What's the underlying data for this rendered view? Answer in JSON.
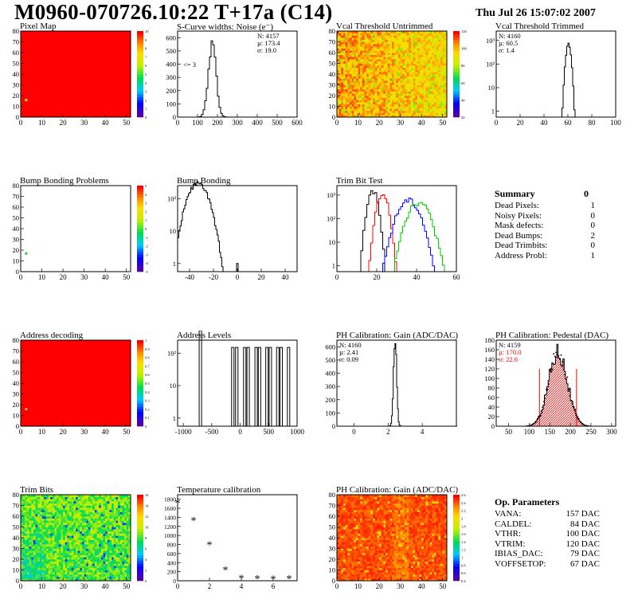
{
  "header": {
    "title": "M0960-070726.10:22 T+17a (C14)",
    "date": "Thu Jul 26 15:07:02 2007"
  },
  "chart_data": [
    {
      "id": "pixel_map",
      "type": "heatmap",
      "title": "Pixel Map",
      "xlim": [
        0,
        52
      ],
      "ylim": [
        0,
        80
      ],
      "xticks": [
        "0",
        "10",
        "20",
        "30",
        "40",
        "50"
      ],
      "yticks": [
        "0",
        "10",
        "20",
        "30",
        "40",
        "50",
        "60",
        "70",
        "80"
      ],
      "palette_ticks": [
        "0",
        "1",
        "2",
        "3",
        "4",
        "5",
        "6",
        "7",
        "8",
        "9",
        "10"
      ],
      "fill": "#ff0000",
      "special_pixels": [
        {
          "x": 2,
          "y": 16,
          "color": "#c8f000"
        }
      ]
    },
    {
      "id": "scurve",
      "type": "histogram",
      "title": "S-Curve widths: Noise (e⁻)",
      "xlim": [
        0,
        600
      ],
      "ylim": [
        0,
        650
      ],
      "xticks": [
        "0",
        "100",
        "200",
        "300",
        "400",
        "500",
        "600"
      ],
      "yticks": [
        "0",
        "100",
        "200",
        "300",
        "400",
        "500",
        "600"
      ],
      "stats": [
        "N: 4157",
        "µ: 173.4",
        "σ: 19.0"
      ],
      "note": "<= 3",
      "mean": 173.4,
      "sigma": 19.0,
      "peak": 600,
      "bin": 8
    },
    {
      "id": "vcal_untrimmed",
      "type": "heatmap",
      "title": "Vcal Threshold Untrimmed",
      "xlim": [
        0,
        52
      ],
      "ylim": [
        0,
        80
      ],
      "xticks": [
        "0",
        "10",
        "20",
        "30",
        "40",
        "50"
      ],
      "yticks": [
        "0",
        "10",
        "20",
        "30",
        "40",
        "50",
        "60",
        "70",
        "80"
      ],
      "palette_ticks": [
        "20",
        "40",
        "60",
        "80",
        "100",
        "120"
      ],
      "pattern": "noisy_orange"
    },
    {
      "id": "vcal_trimmed",
      "type": "histogram",
      "log_y": true,
      "title": "Vcal Threshold Trimmed",
      "xlim": [
        0,
        100
      ],
      "xticks": [
        "0",
        "20",
        "40",
        "60",
        "80",
        "100"
      ],
      "yticks": [
        "1",
        "10",
        "10²",
        "10³"
      ],
      "stats": [
        "N: 4160",
        "µ: 60.5",
        "σ:  1.4"
      ],
      "mean": 60.5,
      "sigma": 1.4,
      "peak": 700,
      "bin": 1
    },
    {
      "id": "bump_map",
      "type": "heatmap",
      "title": "Bump Bonding Problems",
      "xlim": [
        0,
        52
      ],
      "ylim": [
        0,
        80
      ],
      "xticks": [
        "0",
        "10",
        "20",
        "30",
        "40",
        "50"
      ],
      "yticks": [
        "0",
        "10",
        "20",
        "30",
        "40",
        "50",
        "60",
        "70",
        "80"
      ],
      "palette_ticks": [
        "-5",
        "-4",
        "-3",
        "-2",
        "-1",
        "0",
        "1",
        "2",
        "3",
        "4",
        "5"
      ],
      "fill": "#ffffff",
      "special_pixels": [
        {
          "x": 2,
          "y": 17,
          "color": "#33cc33"
        }
      ]
    },
    {
      "id": "bump_bonding",
      "type": "histogram",
      "log_y": true,
      "title": "Bump Bonding",
      "xlim": [
        -50,
        50
      ],
      "xticks": [
        "-40",
        "-20",
        "0",
        "20",
        "40"
      ],
      "yticks": [
        "1",
        "10",
        "10²"
      ],
      "mean": -33,
      "sigma": 6,
      "peak": 300,
      "bin": 1
    },
    {
      "id": "trim_bit_test",
      "type": "histogram",
      "log_y": true,
      "title": "Trim Bit Test",
      "xlim": [
        0,
        60
      ],
      "xticks": [
        "0",
        "20",
        "40",
        "60"
      ],
      "yticks": [
        "1",
        "10",
        "10²",
        "10³"
      ],
      "series": [
        {
          "color": "#000000",
          "mean": 18,
          "sigma": 1.6,
          "peak": 1600
        },
        {
          "color": "#ff0000",
          "mean": 23,
          "sigma": 1.8,
          "peak": 1000
        },
        {
          "color": "#0000ff",
          "mean": 36,
          "sigma": 3.5,
          "peak": 600
        },
        {
          "color": "#00cc00",
          "mean": 41,
          "sigma": 3.5,
          "peak": 500
        }
      ]
    },
    {
      "id": "address_decoding",
      "type": "heatmap",
      "title": "Address decoding",
      "xlim": [
        0,
        52
      ],
      "ylim": [
        0,
        80
      ],
      "xticks": [
        "0",
        "10",
        "20",
        "30",
        "40",
        "50"
      ],
      "yticks": [
        "0",
        "10",
        "20",
        "30",
        "40",
        "50",
        "60",
        "70",
        "80"
      ],
      "palette_ticks": [
        "0",
        "0.1",
        "0.2",
        "0.3",
        "0.4",
        "0.5",
        "0.6",
        "0.7",
        "0.8",
        "0.9",
        "1"
      ],
      "fill": "#ff0000",
      "special_pixels": [
        {
          "x": 2,
          "y": 16,
          "color": "#ffaa88"
        }
      ]
    },
    {
      "id": "address_levels",
      "type": "histogram",
      "log_y": true,
      "title": "Address Levels",
      "xlim": [
        -1100,
        1000
      ],
      "xticks": [
        "-1000",
        "-500",
        "0",
        "500",
        "1000"
      ],
      "yticks": [
        "1",
        "10",
        "10²"
      ],
      "peaks": [
        {
          "x": -700,
          "h": 500
        },
        {
          "x": -130,
          "h": 150
        },
        {
          "x": -60,
          "h": 150
        },
        {
          "x": 80,
          "h": 150
        },
        {
          "x": 140,
          "h": 150
        },
        {
          "x": 280,
          "h": 150
        },
        {
          "x": 340,
          "h": 150
        },
        {
          "x": 470,
          "h": 150
        },
        {
          "x": 530,
          "h": 150
        },
        {
          "x": 660,
          "h": 150
        },
        {
          "x": 720,
          "h": 150
        },
        {
          "x": 850,
          "h": 150
        }
      ]
    },
    {
      "id": "ph_gain",
      "type": "histogram",
      "title": "PH Calibration: Gain (ADC/DAC)",
      "xlim": [
        -1,
        6
      ],
      "ylim": [
        0,
        650
      ],
      "xticks": [
        "0",
        "2",
        "4"
      ],
      "yticks": [
        "0",
        "100",
        "200",
        "300",
        "400",
        "500",
        "600"
      ],
      "stats": [
        "N: 4160",
        "µ: 2.41",
        "σ: 0.09"
      ],
      "mean": 2.41,
      "sigma": 0.09,
      "peak": 620,
      "bin": 0.05
    },
    {
      "id": "ph_pedestal",
      "type": "histogram",
      "title": "PH Calibration: Pedestal (DAC)",
      "xlim": [
        20,
        310
      ],
      "ylim": [
        0,
        180
      ],
      "xticks": [
        "50",
        "100",
        "150",
        "200",
        "250",
        "300"
      ],
      "yticks": [
        "0",
        "20",
        "40",
        "60",
        "80",
        "100",
        "120",
        "140",
        "160",
        "180"
      ],
      "stats": [
        "N: 4159",
        "µ: 170.0",
        "σ: 22.6"
      ],
      "stats_colors": [
        "#000000",
        "#ff0000",
        "#ff0000"
      ],
      "mean": 170,
      "sigma": 22.6,
      "peak": 155,
      "bin": 3
    },
    {
      "id": "trim_bits",
      "type": "heatmap",
      "title": "Trim Bits",
      "xlim": [
        0,
        52
      ],
      "ylim": [
        0,
        80
      ],
      "xticks": [
        "0",
        "10",
        "20",
        "30",
        "40",
        "50"
      ],
      "yticks": [
        "0",
        "10",
        "20",
        "30",
        "40",
        "50",
        "60",
        "70",
        "80"
      ],
      "palette_ticks": [
        "0",
        "2",
        "4",
        "6",
        "8",
        "10",
        "12",
        "14",
        "16"
      ],
      "pattern": "noisy_green"
    },
    {
      "id": "temperature",
      "type": "scatter",
      "title": "Temperature calibration",
      "xlim": [
        0,
        7.5
      ],
      "ylim": [
        0,
        1900
      ],
      "xticks": [
        "0",
        "2",
        "4",
        "6"
      ],
      "yticks": [
        "0",
        "200",
        "400",
        "600",
        "800",
        "1000",
        "1200",
        "1400",
        "1600",
        "1800"
      ],
      "x": [
        0,
        1,
        2,
        3,
        4,
        5,
        6,
        7
      ],
      "y": [
        1720,
        1340,
        800,
        250,
        60,
        50,
        40,
        50
      ]
    },
    {
      "id": "ph_gain_map",
      "type": "heatmap",
      "title": "PH Calibration: Gain (ADC/DAC)",
      "xlim": [
        0,
        52
      ],
      "ylim": [
        0,
        80
      ],
      "xticks": [
        "0",
        "10",
        "20",
        "30",
        "40",
        "50"
      ],
      "yticks": [
        "0",
        "10",
        "20",
        "30",
        "40",
        "50",
        "60",
        "70",
        "80"
      ],
      "palette_ticks": [
        "0.4",
        "0.6",
        "0.8",
        "1",
        "1.2",
        "1.4",
        "1.6",
        "1.8",
        "2",
        "2.2",
        "2.4",
        "2.6"
      ],
      "pattern": "noisy_red"
    }
  ],
  "summary": {
    "title": "Summary",
    "title_value": "0",
    "rows": [
      {
        "label": "Dead Pixels:",
        "value": "1"
      },
      {
        "label": "Noisy Pixels:",
        "value": "0"
      },
      {
        "label": "Mask defects:",
        "value": "0"
      },
      {
        "label": "Dead Bumps:",
        "value": "2"
      },
      {
        "label": "Dead Trimbits:",
        "value": "0"
      },
      {
        "label": "Address Probl:",
        "value": "1"
      }
    ]
  },
  "op_params": {
    "title": "Op. Parameters",
    "rows": [
      {
        "label": "VANA:",
        "value": "157 DAC"
      },
      {
        "label": "CALDEL:",
        "value": "84 DAC"
      },
      {
        "label": "VTHR:",
        "value": "100 DAC"
      },
      {
        "label": "VTRIM:",
        "value": "120 DAC"
      },
      {
        "label": "IBIAS_DAC:",
        "value": "79 DAC"
      },
      {
        "label": "VOFFSETOP:",
        "value": "67 DAC"
      }
    ]
  }
}
